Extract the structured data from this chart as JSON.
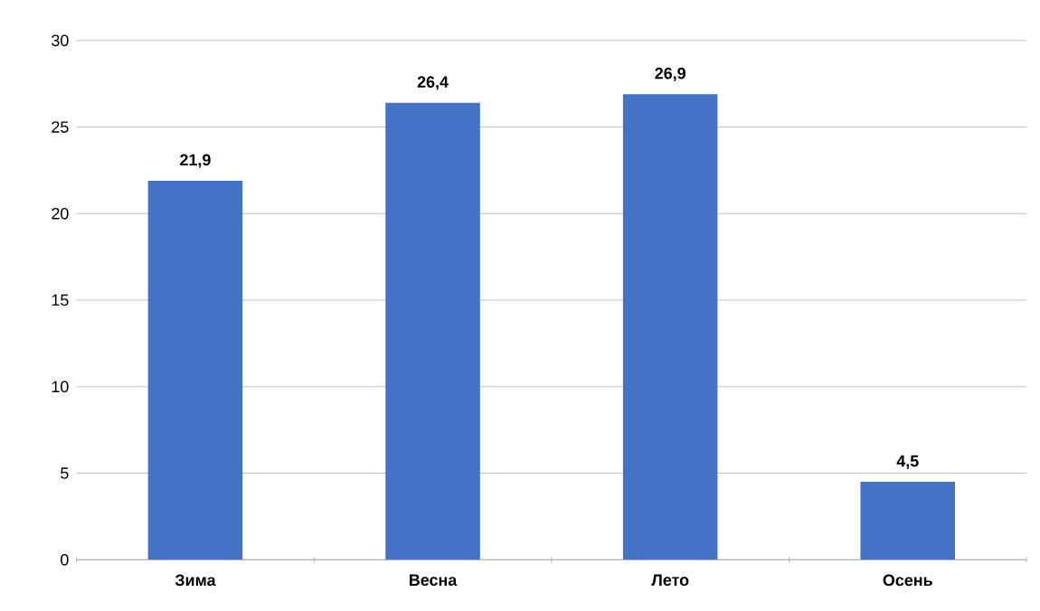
{
  "chart_data": {
    "type": "bar",
    "categories": [
      "Зима",
      "Весна",
      "Лето",
      "Осень"
    ],
    "values": [
      21.9,
      26.4,
      26.9,
      4.5
    ],
    "value_labels": [
      "21,9",
      "26,4",
      "26,9",
      "4,5"
    ],
    "color": "#4472c4",
    "ylim": [
      0,
      30
    ],
    "yticks": [
      0,
      5,
      10,
      15,
      20,
      25,
      30
    ],
    "grid": "y"
  }
}
